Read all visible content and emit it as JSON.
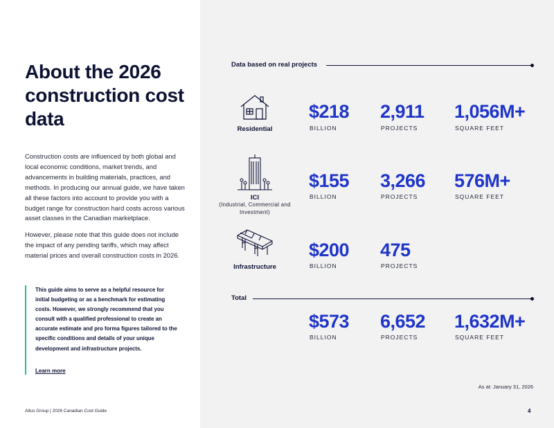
{
  "title": "About the 2026 construction cost data",
  "intro": [
    "Construction costs are influenced by both global and local economic conditions, market trends, and advancements in building materials, practices, and methods. In producing our annual guide, we have taken all these factors into account to provide you with a budget range for construction hard costs across various asset classes in the Canadian marketplace.",
    "However, please note that this guide does not include the impact of any pending tariffs, which may affect material prices and overall construction costs in 2026."
  ],
  "callout": {
    "text": "This guide aims to serve as a helpful resource for initial budgeting or as a benchmark for estimating costs. However, we strongly recommend that you consult with a qualified professional to create an accurate estimate and pro forma figures tailored to the specific conditions and details of your unique development and infrastructure projects.",
    "link": "Learn more",
    "accent_color": "#1fb8a8"
  },
  "section_label": "Data based on real projects",
  "categories": [
    {
      "name": "Residential",
      "sub": "",
      "icon": "house-icon",
      "stats": [
        {
          "value": "$218",
          "unit": "BILLION"
        },
        {
          "value": "2,911",
          "unit": "PROJECTS"
        },
        {
          "value": "1,056M+",
          "unit": "SQUARE FEET"
        }
      ]
    },
    {
      "name": "ICI",
      "sub": "(Industrial, Commercial and Investment)",
      "icon": "office-tower-icon",
      "stats": [
        {
          "value": "$155",
          "unit": "BILLION"
        },
        {
          "value": "3,266",
          "unit": "PROJECTS"
        },
        {
          "value": "576M+",
          "unit": "SQUARE FEET"
        }
      ]
    },
    {
      "name": "Infrastructure",
      "sub": "",
      "icon": "bridge-icon",
      "stats": [
        {
          "value": "$200",
          "unit": "BILLION"
        },
        {
          "value": "475",
          "unit": "PROJECTS"
        }
      ]
    }
  ],
  "total": {
    "label": "Total",
    "stats": [
      {
        "value": "$573",
        "unit": "BILLION"
      },
      {
        "value": "6,652",
        "unit": "PROJECTS"
      },
      {
        "value": "1,632M+",
        "unit": "SQUARE FEET"
      }
    ]
  },
  "as_at": "As at: January 31, 2026",
  "footer": "Altus Group | 2026 Canadian Cost Guide",
  "page_number": "4",
  "colors": {
    "value_blue": "#1f35c8",
    "navy": "#0d1233",
    "panel_grey": "#f2f2f3"
  }
}
